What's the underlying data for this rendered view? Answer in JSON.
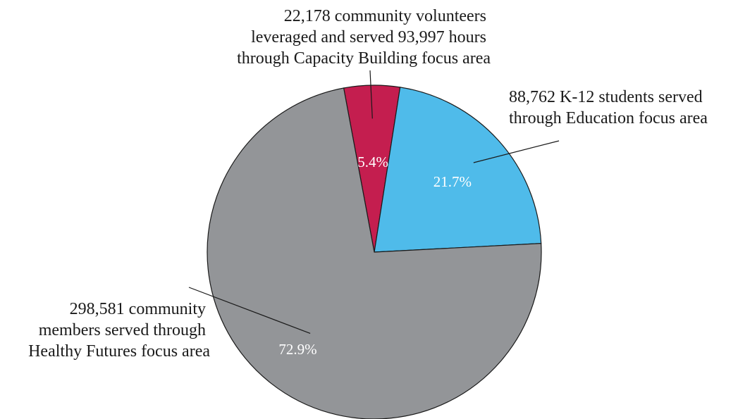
{
  "chart_data": {
    "type": "pie",
    "title": "",
    "slices": [
      {
        "name": "Capacity Building",
        "value": 5.4,
        "percent_label": "5.4%",
        "color": "#c41e4f",
        "callout": [
          "22,178 community volunteers",
          "leveraged and served 93,997 hours",
          "through Capacity Building focus area"
        ]
      },
      {
        "name": "Education",
        "value": 21.7,
        "percent_label": "21.7%",
        "color": "#4fbbea",
        "callout": [
          "88,762 K-12 students served",
          "through Education focus area"
        ]
      },
      {
        "name": "Healthy Futures",
        "value": 72.9,
        "percent_label": "72.9%",
        "color": "#939598",
        "callout": [
          "298,581 community",
          "members served through",
          "Healthy Futures focus area"
        ]
      }
    ]
  }
}
